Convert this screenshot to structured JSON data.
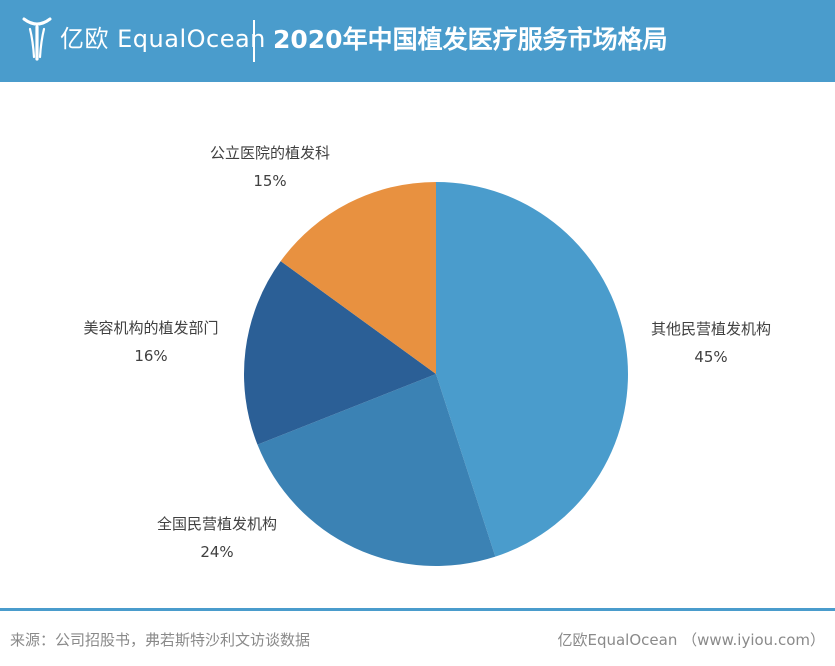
{
  "header": {
    "logo_text": "亿欧 EqualOcean",
    "title": "2020年中国植发医疗服务市场格局",
    "background": "#4a9ccc"
  },
  "chart_data": {
    "type": "pie",
    "title": "2020年中国植发医疗服务市场格局",
    "start_angle_deg": 0,
    "direction": "clockwise",
    "slices": [
      {
        "label": "其他民营植发机构",
        "value": 45,
        "value_text": "45%",
        "color": "#4a9ccc"
      },
      {
        "label": "全国民营植发机构",
        "value": 24,
        "value_text": "24%",
        "color": "#3b82b4"
      },
      {
        "label": "美容机构的植发部门",
        "value": 16,
        "value_text": "16%",
        "color": "#2b5f96"
      },
      {
        "label": "公立医院的植发科",
        "value": 15,
        "value_text": "15%",
        "color": "#e89140"
      }
    ]
  },
  "footer": {
    "source": "来源：公司招股书，弗若斯特沙利文访谈数据",
    "credit": "亿欧EqualOcean （www.iyiou.com）",
    "line_color": "#4a9ccc"
  }
}
